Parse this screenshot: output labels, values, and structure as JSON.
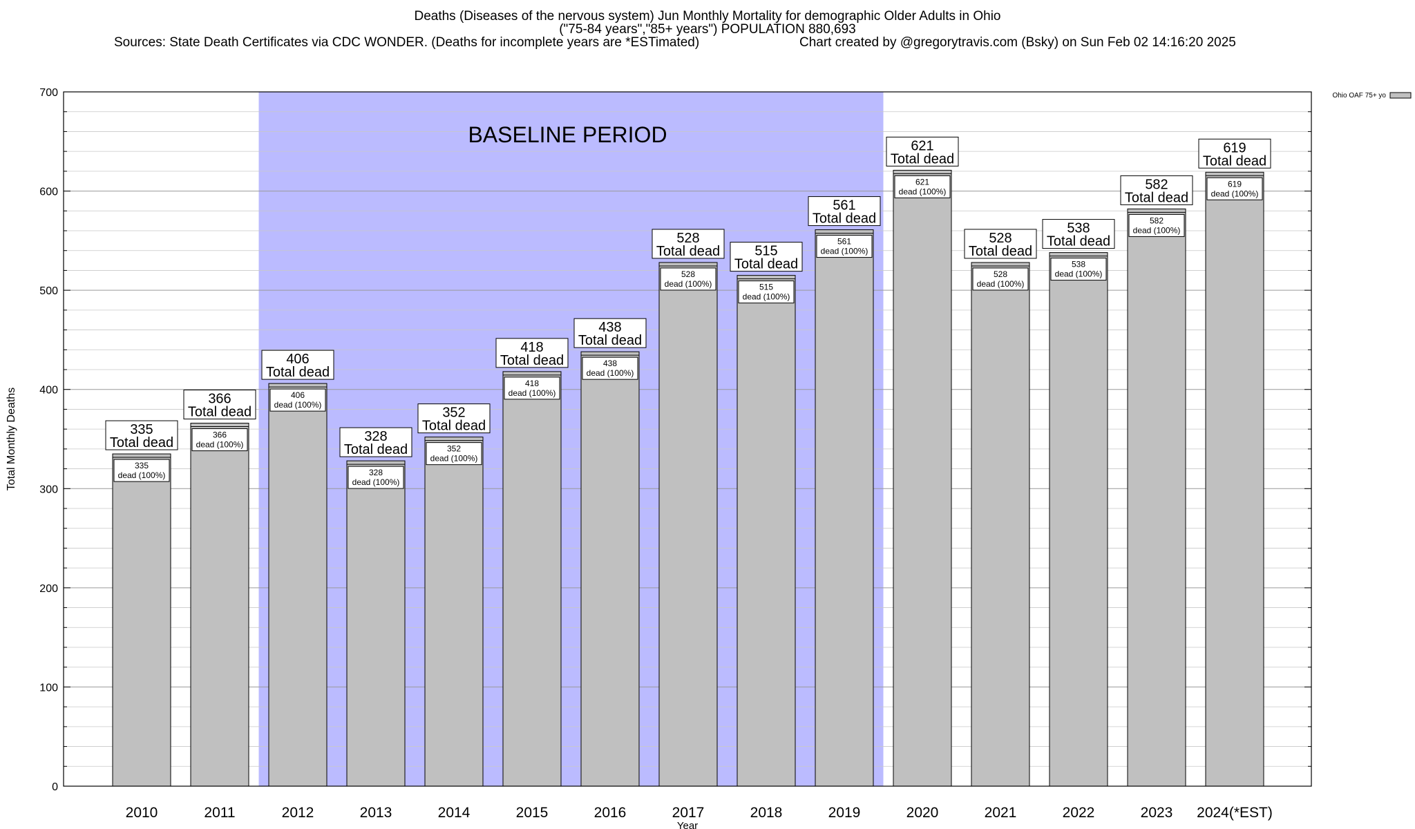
{
  "chart_data": {
    "type": "bar",
    "title": "Deaths (Diseases of the nervous system) Jun Monthly Mortality for demographic Older Adults in Ohio",
    "subtitle": "(\"75-84 years\",\"85+ years\") POPULATION 880,693",
    "sources": "Sources: State Death Certificates via CDC WONDER. (Deaths for incomplete years are *ESTimated)",
    "credit": "Chart created by @gregorytravis.com (Bsky) on Sun Feb 02 14:16:20 2025",
    "xlabel": "Year",
    "ylabel": "Total Monthly Deaths",
    "ylim": [
      0,
      700
    ],
    "yticks": [
      0,
      100,
      200,
      300,
      400,
      500,
      600,
      700
    ],
    "y_minor_step": 20,
    "grid": true,
    "legend_position": "top-right",
    "categories": [
      "2010",
      "2011",
      "2012",
      "2013",
      "2014",
      "2015",
      "2016",
      "2017",
      "2018",
      "2019",
      "2020",
      "2021",
      "2022",
      "2023",
      "2024(*EST)"
    ],
    "series": [
      {
        "name": "Ohio OAF 75+ yo",
        "values": [
          335,
          366,
          406,
          328,
          352,
          418,
          438,
          528,
          515,
          561,
          621,
          528,
          538,
          582,
          619
        ],
        "color": "#c0c0c0"
      }
    ],
    "total_label": "Total dead",
    "inner_label_suffix": "dead (100%)",
    "baseline": {
      "label": "BASELINE PERIOD",
      "start": "2012",
      "end": "2019",
      "color": "#bbbbff"
    }
  }
}
